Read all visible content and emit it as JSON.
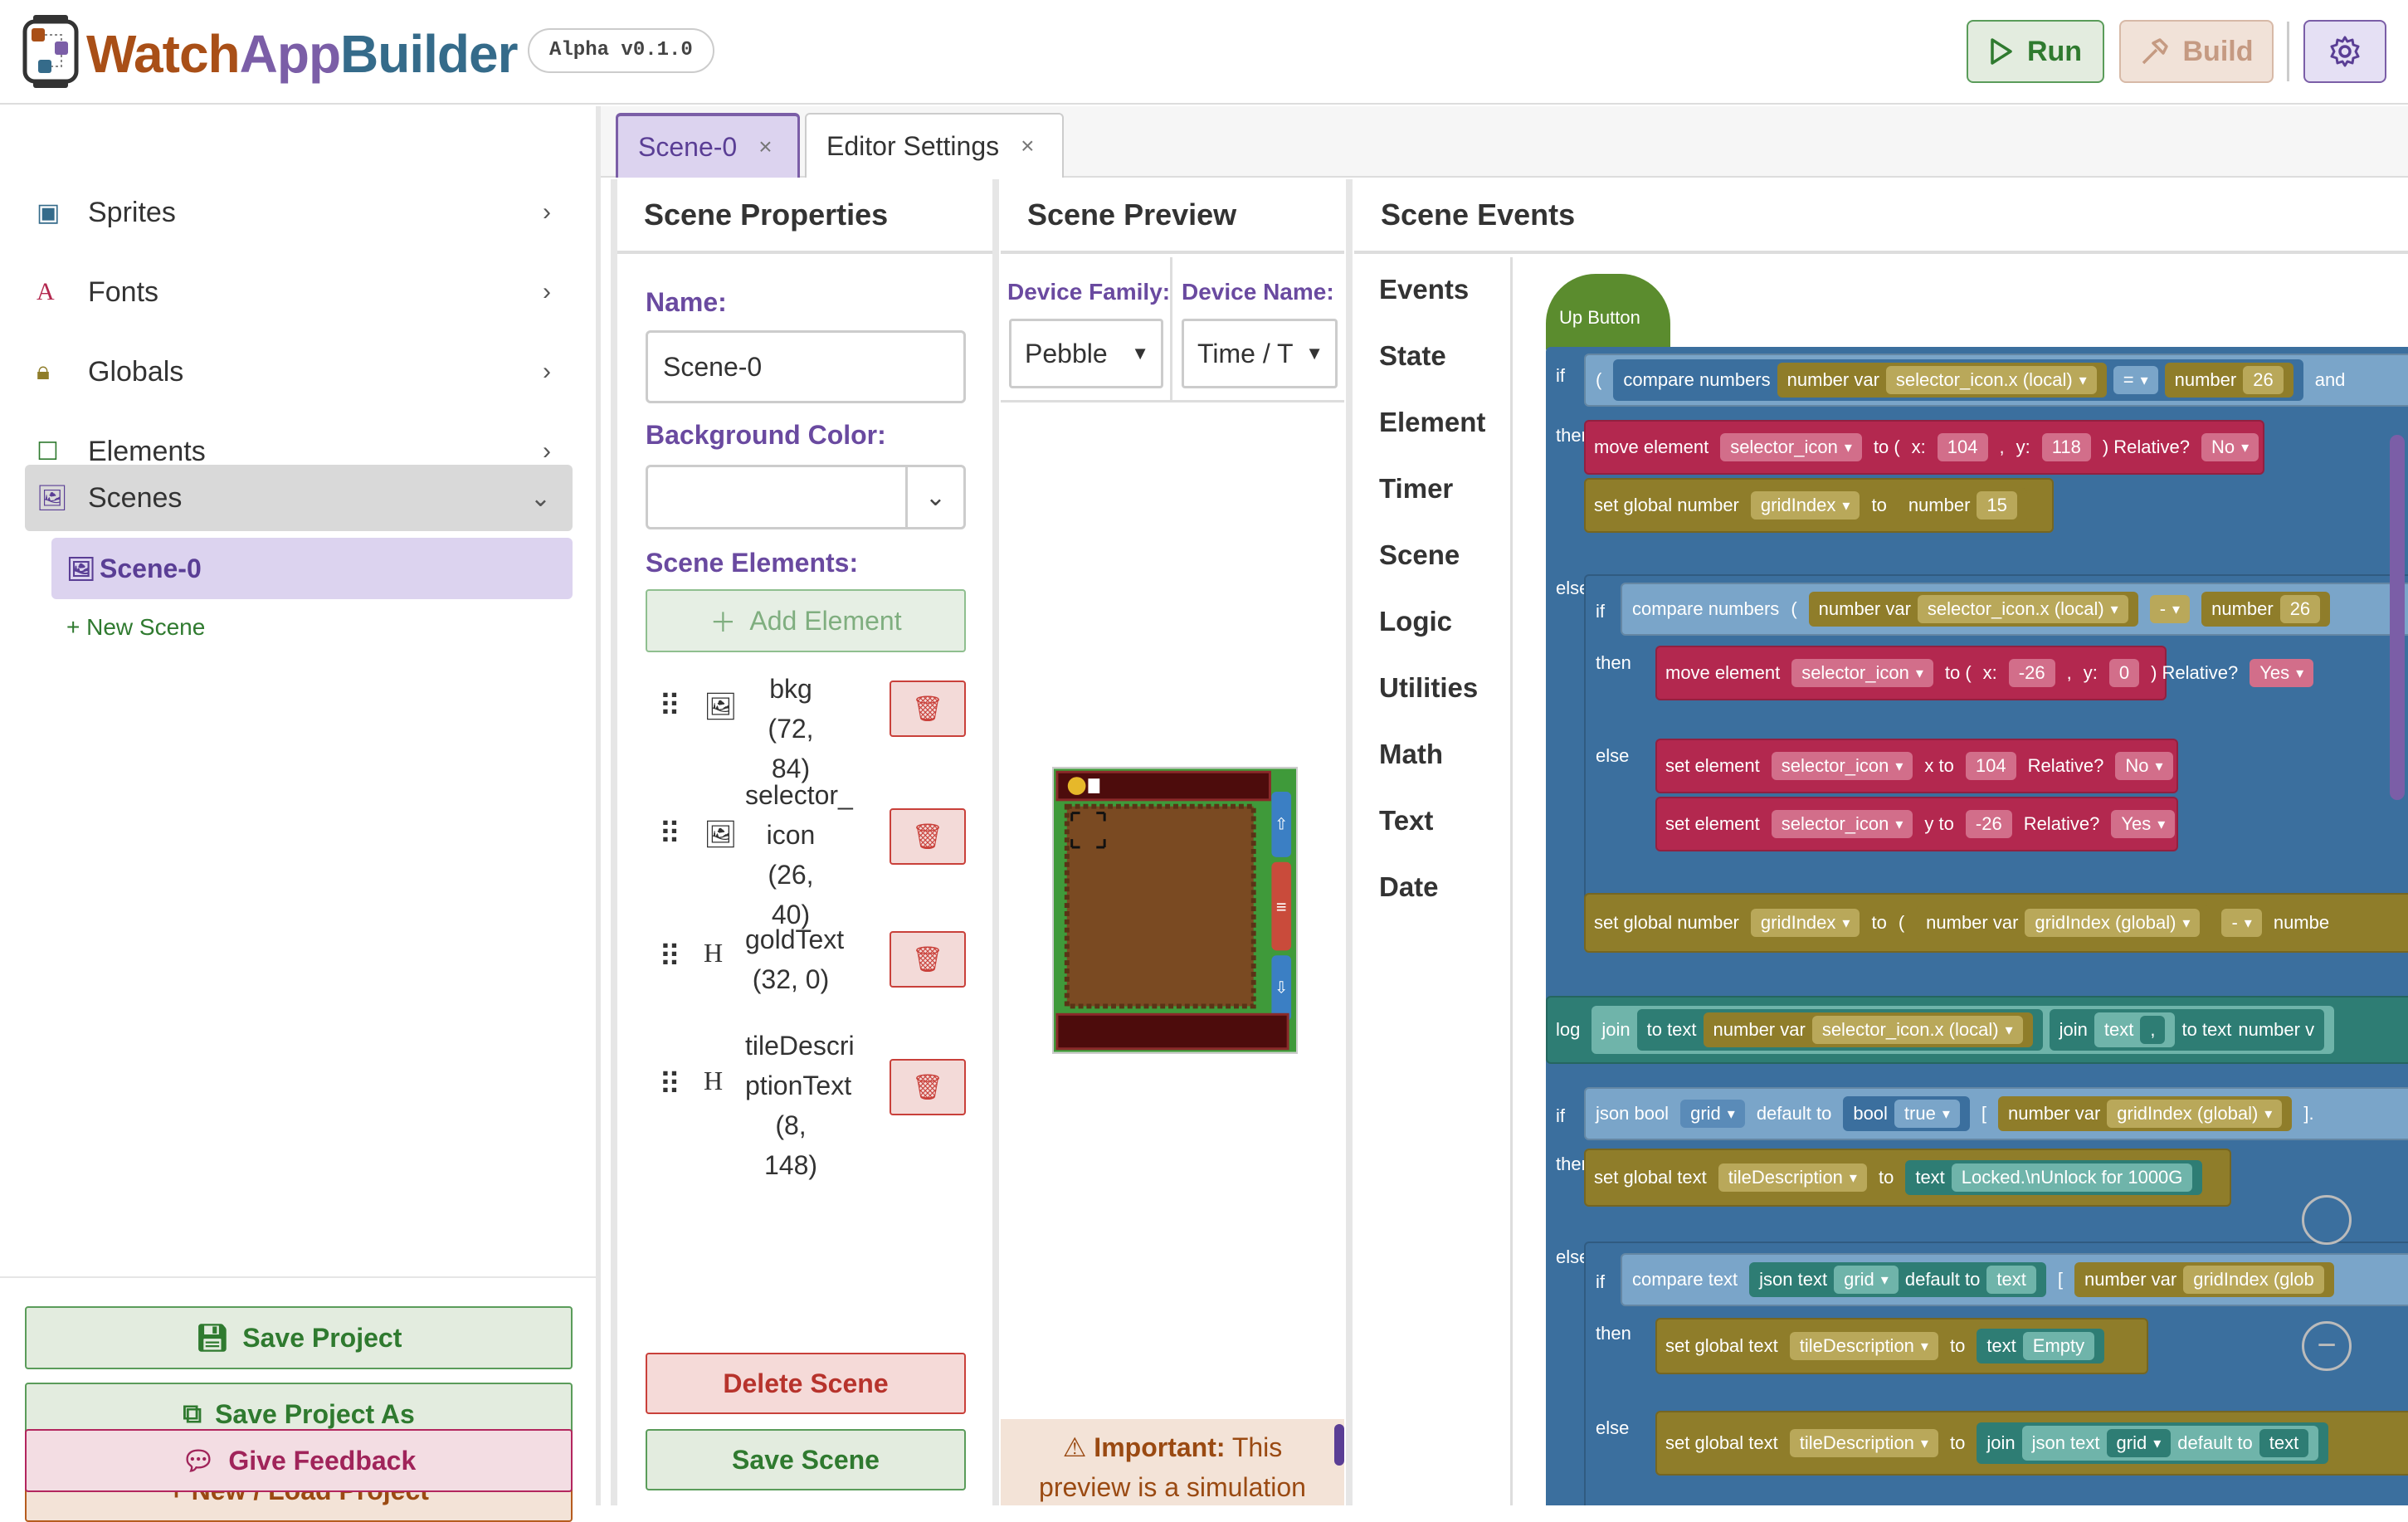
{
  "app": {
    "title_watch": "Watch",
    "title_app": "App",
    "title_builder": "Builder",
    "version": "Alpha v0.1.0"
  },
  "toolbar": {
    "run": "Run",
    "build": "Build",
    "settings_icon": "gear-icon"
  },
  "sidebar": {
    "items": [
      {
        "label": "Sprites"
      },
      {
        "label": "Fonts"
      },
      {
        "label": "Globals"
      },
      {
        "label": "Elements"
      },
      {
        "label": "Scenes"
      }
    ],
    "scene_item": "Scene-0",
    "new_scene": "+ New Scene",
    "save_project": "Save Project",
    "save_project_as": "Save Project As",
    "new_load": "+ New / Load Project",
    "feedback": "Give Feedback"
  },
  "tabs": [
    {
      "label": "Scene-0"
    },
    {
      "label": "Editor Settings"
    }
  ],
  "columns": {
    "properties": "Scene Properties",
    "preview": "Scene Preview",
    "events": "Scene Events"
  },
  "properties": {
    "name_label": "Name:",
    "name_value": "Scene-0",
    "bg_label": "Background Color:",
    "elements_label": "Scene Elements:",
    "add_element": "Add Element",
    "elements": [
      {
        "l1": "bkg (72,",
        "l2": "84)",
        "l3": ""
      },
      {
        "l1": "selector_",
        "l2": "icon (26,",
        "l3": "40)"
      },
      {
        "l1": "goldText",
        "l2": "(32, 0)",
        "l3": ""
      },
      {
        "l1": "tileDescri",
        "l2": "ptionText",
        "l3": "(8, 148)"
      }
    ],
    "delete_scene": "Delete Scene",
    "save_scene": "Save Scene"
  },
  "preview": {
    "family_label": "Device Family:",
    "family_value": "Pebble",
    "name_label": "Device Name:",
    "name_value": "Time / T",
    "important_bold": "Important:",
    "important_text": " This",
    "important_text2": "preview is a simulation"
  },
  "categories": [
    "Events",
    "State",
    "Element",
    "Timer",
    "Scene",
    "Logic",
    "Utilities",
    "Math",
    "Text",
    "Date"
  ],
  "blocks": {
    "hat": "Up Button",
    "kw_if": "if",
    "kw_then": "then",
    "kw_else": "else",
    "kw_log": "log",
    "compare_numbers": "compare numbers",
    "number_var": "number var",
    "selector_x": "selector_icon.x (local)",
    "op_eq": "=",
    "op_minus": "-",
    "number": "number",
    "n26": "26",
    "and": "and",
    "move_element": "move element",
    "selector_icon": "selector_icon",
    "to_paren": "to (",
    "x_colon": "x:",
    "y_colon": "y:",
    "n104": "104",
    "n118": "118",
    "relative": ") Relative?",
    "no": "No",
    "yes": "Yes",
    "set_global_number": "set global number",
    "gridIndex": "gridIndex",
    "to": "to",
    "n15": "15",
    "nm26": "-26",
    "n0": "0",
    "set_element": "set element",
    "x_to": "x to",
    "y_to": "y to",
    "relative2": "Relative?",
    "paren": "(",
    "gridIndex_global": "gridIndex (global)",
    "number_trail": "numbe",
    "join": "join",
    "to_text": "to text",
    "text": "text",
    "comma": ",",
    "number_v": "number v",
    "json_bool": "json bool",
    "grid": "grid",
    "default_to": "default to",
    "bool": "bool",
    "true": "true",
    "bracket": "[",
    "close": "].",
    "set_global_text": "set global text",
    "tileDescription": "tileDescription",
    "locked": "Locked.\\nUnlock for 1000G",
    "compare_text": "compare text",
    "json_text": "json text",
    "gridIndex_glob": "gridIndex (glob",
    "empty": "Empty"
  }
}
